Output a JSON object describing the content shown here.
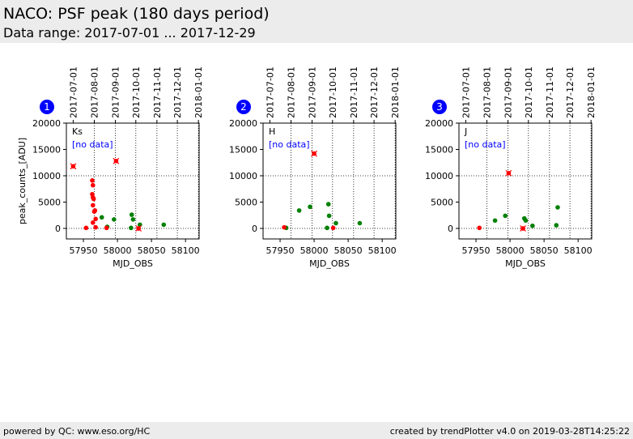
{
  "header": {
    "title": "NACO: PSF peak (180 days period)",
    "subtitle": "Data range: 2017-07-01 ... 2017-12-29"
  },
  "footer": {
    "left": "powered by QC: www.eso.org/HC",
    "right": "created by trendPlotter v4.0 on 2019-03-28T14:25:22"
  },
  "colors": {
    "good": "#008000",
    "bad": "#ff0000",
    "badge": "#0000ff",
    "nodata": "#0000ff",
    "header_bg": "#ececec"
  },
  "chart_data": [
    {
      "type": "scatter",
      "badge": "1",
      "filter_label": "Ks",
      "nodata_label": "[no data]",
      "xlabel": "MJD_OBS",
      "ylabel": "peak_counts_[ADU]",
      "xlim": [
        57925,
        58120
      ],
      "ylim": [
        -2000,
        20000
      ],
      "xticks": [
        57950,
        58000,
        58050,
        58100
      ],
      "yticks": [
        0,
        5000,
        10000,
        15000,
        20000
      ],
      "top_axis_dates": [
        "2017-07-01",
        "2017-08-01",
        "2017-09-01",
        "2017-10-01",
        "2017-11-01",
        "2017-12-01",
        "2018-01-01"
      ],
      "top_axis_mjd": [
        57935,
        57966,
        57997,
        58027,
        58058,
        58088,
        58119
      ],
      "vlines": [
        57966,
        57997,
        58027,
        58058,
        58088,
        58119
      ],
      "hlines": [
        0,
        10000
      ],
      "series": [
        {
          "kind": "good",
          "points": [
            [
              57977,
              2100
            ],
            [
              57985,
              300
            ],
            [
              57995,
              1700
            ],
            [
              58021,
              2600
            ],
            [
              58023,
              1700
            ],
            [
              58033,
              700
            ],
            [
              58068,
              700
            ],
            [
              58020,
              100
            ]
          ]
        },
        {
          "kind": "bad",
          "points": [
            [
              57954,
              100
            ],
            [
              57963,
              9100
            ],
            [
              57964,
              8200
            ],
            [
              57963,
              6500
            ],
            [
              57964,
              5900
            ],
            [
              57965,
              5600
            ],
            [
              57964,
              4400
            ],
            [
              57966,
              3200
            ],
            [
              57967,
              3400
            ],
            [
              57968,
              1800
            ],
            [
              57964,
              1100
            ],
            [
              57968,
              200
            ],
            [
              57984,
              100
            ],
            [
              58031,
              0
            ]
          ]
        },
        {
          "kind": "outlier",
          "points": [
            [
              57935,
              11800
            ],
            [
              57998,
              12800
            ],
            [
              58031,
              0
            ]
          ]
        }
      ]
    },
    {
      "type": "scatter",
      "badge": "2",
      "filter_label": "H",
      "nodata_label": "[no data]",
      "xlabel": "MJD_OBS",
      "ylabel": "",
      "xlim": [
        57925,
        58120
      ],
      "ylim": [
        -2000,
        20000
      ],
      "xticks": [
        57950,
        58000,
        58050,
        58100
      ],
      "yticks": [
        0,
        5000,
        10000,
        15000,
        20000
      ],
      "top_axis_dates": [
        "2017-07-01",
        "2017-08-01",
        "2017-09-01",
        "2017-10-01",
        "2017-11-01",
        "2017-12-01",
        "2018-01-01"
      ],
      "top_axis_mjd": [
        57935,
        57966,
        57997,
        58027,
        58058,
        58088,
        58119
      ],
      "vlines": [
        57966,
        57997,
        58027,
        58058,
        58088,
        58119
      ],
      "hlines": [
        0,
        10000
      ],
      "series": [
        {
          "kind": "good",
          "points": [
            [
              57959,
              100
            ],
            [
              57978,
              3400
            ],
            [
              57994,
              4100
            ],
            [
              58021,
              4600
            ],
            [
              58022,
              2400
            ],
            [
              58019,
              100
            ],
            [
              58032,
              1000
            ],
            [
              58067,
              1000
            ]
          ]
        },
        {
          "kind": "bad",
          "points": [
            [
              57956,
              200
            ],
            [
              58028,
              100
            ]
          ]
        },
        {
          "kind": "outlier",
          "points": [
            [
              58000,
              14200
            ]
          ]
        }
      ]
    },
    {
      "type": "scatter",
      "badge": "3",
      "filter_label": "J",
      "nodata_label": "[no data]",
      "xlabel": "MJD_OBS",
      "ylabel": "",
      "xlim": [
        57925,
        58120
      ],
      "ylim": [
        -2000,
        20000
      ],
      "xticks": [
        57950,
        58000,
        58050,
        58100
      ],
      "yticks": [
        0,
        5000,
        10000,
        15000,
        20000
      ],
      "top_axis_dates": [
        "2017-07-01",
        "2017-08-01",
        "2017-09-01",
        "2017-10-01",
        "2017-11-01",
        "2017-12-01",
        "2018-01-01"
      ],
      "top_axis_mjd": [
        57935,
        57966,
        57997,
        58027,
        58058,
        58088,
        58119
      ],
      "vlines": [
        57966,
        57997,
        58027,
        58058,
        58088,
        58119
      ],
      "hlines": [
        0,
        10000
      ],
      "series": [
        {
          "kind": "good",
          "points": [
            [
              57978,
              1500
            ],
            [
              57993,
              2400
            ],
            [
              58021,
              1900
            ],
            [
              58023,
              1500
            ],
            [
              58033,
              500
            ],
            [
              58068,
              600
            ],
            [
              58070,
              4000
            ]
          ]
        },
        {
          "kind": "bad",
          "points": [
            [
              57955,
              100
            ],
            [
              58019,
              0
            ]
          ]
        },
        {
          "kind": "outlier",
          "points": [
            [
              57998,
              10500
            ],
            [
              58019,
              0
            ]
          ]
        }
      ]
    }
  ]
}
